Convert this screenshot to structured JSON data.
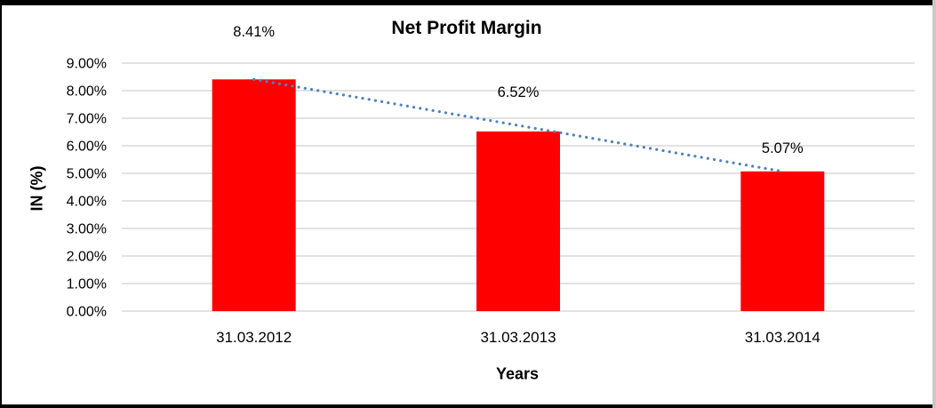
{
  "chart_data": {
    "type": "bar",
    "title": "Net Profit Margin",
    "xlabel": "Years",
    "ylabel": "IN (%)",
    "categories": [
      "31.03.2012",
      "31.03.2013",
      "31.03.2014"
    ],
    "values": [
      8.41,
      6.52,
      5.07
    ],
    "data_labels": [
      "8.41%",
      "6.52%",
      "5.07%"
    ],
    "yticks": [
      "0.00%",
      "1.00%",
      "2.00%",
      "3.00%",
      "4.00%",
      "5.00%",
      "6.00%",
      "7.00%",
      "8.00%",
      "9.00%"
    ],
    "ylim": [
      0,
      9
    ],
    "grid": true,
    "legend_position": "none",
    "bar_color": "#FF0000",
    "gridline_color": "#D9D9D9",
    "trendline": {
      "style": "dotted",
      "color": "#4F81BD"
    }
  }
}
